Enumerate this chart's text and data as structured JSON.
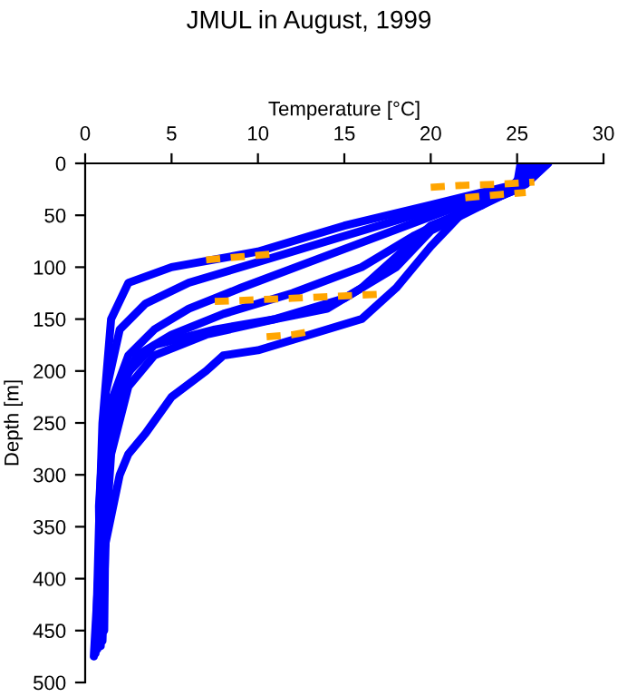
{
  "chart_data": {
    "type": "line",
    "title": "JMUL in August, 1999",
    "xlabel": "Temperature [°C]",
    "ylabel": "Depth [m]",
    "xlim": [
      0,
      30
    ],
    "xticks": [
      0,
      5,
      10,
      15,
      20,
      25,
      30
    ],
    "ylim": [
      500,
      0
    ],
    "yticks": [
      0,
      50,
      100,
      150,
      200,
      250,
      300,
      350,
      400,
      450,
      500
    ],
    "grid": false,
    "marker": "none",
    "line_style": "solid",
    "series": [
      {
        "color": "#0000ff",
        "x": [
          25.2,
          25,
          20,
          15,
          10,
          5,
          2.5,
          1.5,
          1,
          0.8,
          0.6
        ],
        "values": [
          0,
          20,
          40,
          60,
          85,
          100,
          115,
          150,
          250,
          350,
          472
        ]
      },
      {
        "color": "#0000ff",
        "x": [
          26.6,
          25,
          22,
          18,
          14,
          10,
          6,
          3.5,
          2,
          1.2,
          0.8,
          0.9
        ],
        "values": [
          0,
          20,
          35,
          55,
          75,
          95,
          115,
          135,
          160,
          220,
          330,
          465
        ]
      },
      {
        "color": "#0000ff",
        "x": [
          26,
          24.5,
          21,
          17,
          13,
          9,
          6,
          4,
          2.5,
          1.5,
          1,
          0.5
        ],
        "values": [
          0,
          25,
          45,
          70,
          95,
          120,
          140,
          160,
          185,
          230,
          330,
          475
        ]
      },
      {
        "color": "#0000ff",
        "x": [
          26.3,
          25,
          22,
          19,
          16,
          12,
          8,
          5,
          3,
          2,
          1.3,
          1
        ],
        "values": [
          0,
          25,
          45,
          70,
          100,
          125,
          145,
          165,
          185,
          220,
          300,
          460
        ]
      },
      {
        "color": "#0000ff",
        "x": [
          26.8,
          25.5,
          23,
          20,
          18,
          15,
          11,
          7,
          4,
          2.5,
          1.5,
          0.8
        ],
        "values": [
          0,
          20,
          40,
          65,
          100,
          130,
          150,
          165,
          185,
          215,
          280,
          455
        ]
      },
      {
        "color": "#0000ff",
        "x": [
          25.5,
          25,
          23,
          20,
          18,
          16,
          14,
          11,
          7.5,
          4,
          2,
          1.2,
          1.1
        ],
        "values": [
          0,
          20,
          40,
          60,
          90,
          120,
          140,
          150,
          160,
          175,
          210,
          300,
          450
        ]
      },
      {
        "color": "#0000ff",
        "x": [
          25.8,
          25,
          22,
          20,
          18,
          16,
          12,
          10,
          8,
          7,
          5,
          3.5,
          2.5,
          2,
          1,
          0.7
        ],
        "values": [
          0,
          25,
          45,
          80,
          120,
          150,
          170,
          180,
          185,
          200,
          225,
          260,
          280,
          300,
          380,
          468
        ]
      },
      {
        "color": "#ffa500",
        "line_style": "dashed",
        "x": [
          20,
          22,
          24,
          26
        ],
        "values": [
          23,
          21,
          20,
          18
        ]
      },
      {
        "color": "#ffa500",
        "line_style": "dashed",
        "x": [
          22,
          24,
          25.5
        ],
        "values": [
          33,
          30,
          28
        ]
      },
      {
        "color": "#ffa500",
        "line_style": "dashed",
        "x": [
          7,
          9,
          11
        ],
        "values": [
          93,
          90,
          87
        ]
      },
      {
        "color": "#ffa500",
        "line_style": "dashed",
        "x": [
          7.5,
          12,
          17
        ],
        "values": [
          133,
          130,
          126
        ]
      },
      {
        "color": "#ffa500",
        "line_style": "dashed",
        "x": [
          10.5,
          12,
          13
        ],
        "values": [
          167,
          165,
          162
        ]
      }
    ]
  }
}
